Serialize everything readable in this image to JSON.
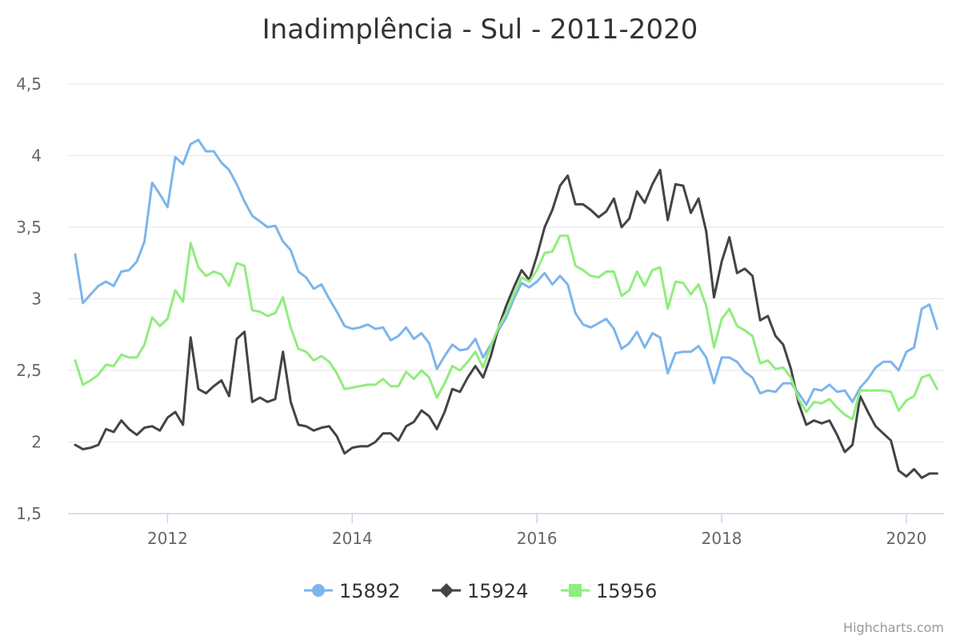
{
  "chart_data": {
    "type": "line",
    "title": "Inadimplência - Sul - 2011-2020",
    "xlabel": "",
    "ylabel": "",
    "x_start": "2011-01",
    "x_end": "2020-05",
    "x_ticks": [
      "2012",
      "2014",
      "2016",
      "2018",
      "2020"
    ],
    "ylim": [
      1.5,
      4.5
    ],
    "y_ticks": [
      "1,5",
      "2",
      "2,5",
      "3",
      "3,5",
      "4",
      "4,5"
    ],
    "grid": true,
    "legend_position": "bottom-center",
    "credits": "Highcharts.com",
    "series": [
      {
        "name": "15892",
        "color": "#7cb5ec",
        "marker": "circle",
        "values": [
          3.31,
          2.97,
          3.03,
          3.09,
          3.12,
          3.09,
          3.19,
          3.2,
          3.26,
          3.4,
          3.81,
          3.73,
          3.64,
          3.99,
          3.94,
          4.08,
          4.11,
          4.03,
          4.03,
          3.95,
          3.9,
          3.8,
          3.68,
          3.58,
          3.54,
          3.5,
          3.51,
          3.4,
          3.34,
          3.19,
          3.15,
          3.07,
          3.1,
          3.0,
          2.91,
          2.81,
          2.79,
          2.8,
          2.82,
          2.79,
          2.8,
          2.71,
          2.74,
          2.8,
          2.72,
          2.76,
          2.69,
          2.51,
          2.6,
          2.68,
          2.64,
          2.65,
          2.72,
          2.59,
          2.68,
          2.78,
          2.87,
          3.0,
          3.11,
          3.08,
          3.12,
          3.18,
          3.1,
          3.16,
          3.1,
          2.9,
          2.82,
          2.8,
          2.83,
          2.86,
          2.79,
          2.65,
          2.69,
          2.77,
          2.66,
          2.76,
          2.73,
          2.48,
          2.62,
          2.63,
          2.63,
          2.67,
          2.59,
          2.41,
          2.59,
          2.59,
          2.56,
          2.49,
          2.45,
          2.34,
          2.36,
          2.35,
          2.41,
          2.41,
          2.34,
          2.26,
          2.37,
          2.36,
          2.4,
          2.35,
          2.36,
          2.28,
          2.38,
          2.44,
          2.52,
          2.56,
          2.56,
          2.5,
          2.63,
          2.66,
          2.93,
          2.96,
          2.79
        ]
      },
      {
        "name": "15924",
        "color": "#434348",
        "marker": "diamond",
        "values": [
          1.98,
          1.95,
          1.96,
          1.98,
          2.09,
          2.07,
          2.15,
          2.09,
          2.05,
          2.1,
          2.11,
          2.08,
          2.17,
          2.21,
          2.12,
          2.73,
          2.37,
          2.34,
          2.39,
          2.43,
          2.32,
          2.72,
          2.77,
          2.28,
          2.31,
          2.28,
          2.3,
          2.63,
          2.28,
          2.12,
          2.11,
          2.08,
          2.1,
          2.11,
          2.04,
          1.92,
          1.96,
          1.97,
          1.97,
          2.0,
          2.06,
          2.06,
          2.01,
          2.11,
          2.14,
          2.22,
          2.18,
          2.09,
          2.21,
          2.37,
          2.35,
          2.45,
          2.53,
          2.45,
          2.6,
          2.8,
          2.95,
          3.08,
          3.2,
          3.13,
          3.3,
          3.5,
          3.62,
          3.79,
          3.86,
          3.66,
          3.66,
          3.62,
          3.57,
          3.61,
          3.7,
          3.5,
          3.56,
          3.75,
          3.67,
          3.8,
          3.9,
          3.55,
          3.8,
          3.79,
          3.6,
          3.7,
          3.47,
          3.01,
          3.26,
          3.43,
          3.18,
          3.21,
          3.16,
          2.85,
          2.88,
          2.74,
          2.68,
          2.51,
          2.27,
          2.12,
          2.15,
          2.13,
          2.15,
          2.05,
          1.93,
          1.98,
          2.32,
          2.21,
          2.11,
          2.06,
          2.01,
          1.8,
          1.76,
          1.81,
          1.75,
          1.78,
          1.78
        ]
      },
      {
        "name": "15956",
        "color": "#90ed7d",
        "marker": "square",
        "values": [
          2.57,
          2.4,
          2.43,
          2.47,
          2.54,
          2.53,
          2.61,
          2.59,
          2.59,
          2.68,
          2.87,
          2.81,
          2.86,
          3.06,
          2.98,
          3.39,
          3.22,
          3.16,
          3.19,
          3.17,
          3.09,
          3.25,
          3.23,
          2.92,
          2.91,
          2.88,
          2.9,
          3.01,
          2.8,
          2.65,
          2.63,
          2.57,
          2.6,
          2.56,
          2.48,
          2.37,
          2.38,
          2.39,
          2.4,
          2.4,
          2.44,
          2.39,
          2.39,
          2.49,
          2.44,
          2.5,
          2.45,
          2.31,
          2.41,
          2.53,
          2.5,
          2.56,
          2.63,
          2.52,
          2.67,
          2.8,
          2.9,
          3.03,
          3.15,
          3.12,
          3.2,
          3.32,
          3.33,
          3.44,
          3.44,
          3.23,
          3.2,
          3.16,
          3.15,
          3.19,
          3.19,
          3.02,
          3.06,
          3.19,
          3.09,
          3.2,
          3.22,
          2.93,
          3.12,
          3.11,
          3.03,
          3.1,
          2.95,
          2.66,
          2.86,
          2.93,
          2.81,
          2.78,
          2.74,
          2.55,
          2.57,
          2.51,
          2.52,
          2.45,
          2.3,
          2.21,
          2.28,
          2.27,
          2.3,
          2.24,
          2.19,
          2.16,
          2.36,
          2.36,
          2.36,
          2.36,
          2.35,
          2.22,
          2.29,
          2.32,
          2.45,
          2.47,
          2.37
        ]
      }
    ]
  }
}
